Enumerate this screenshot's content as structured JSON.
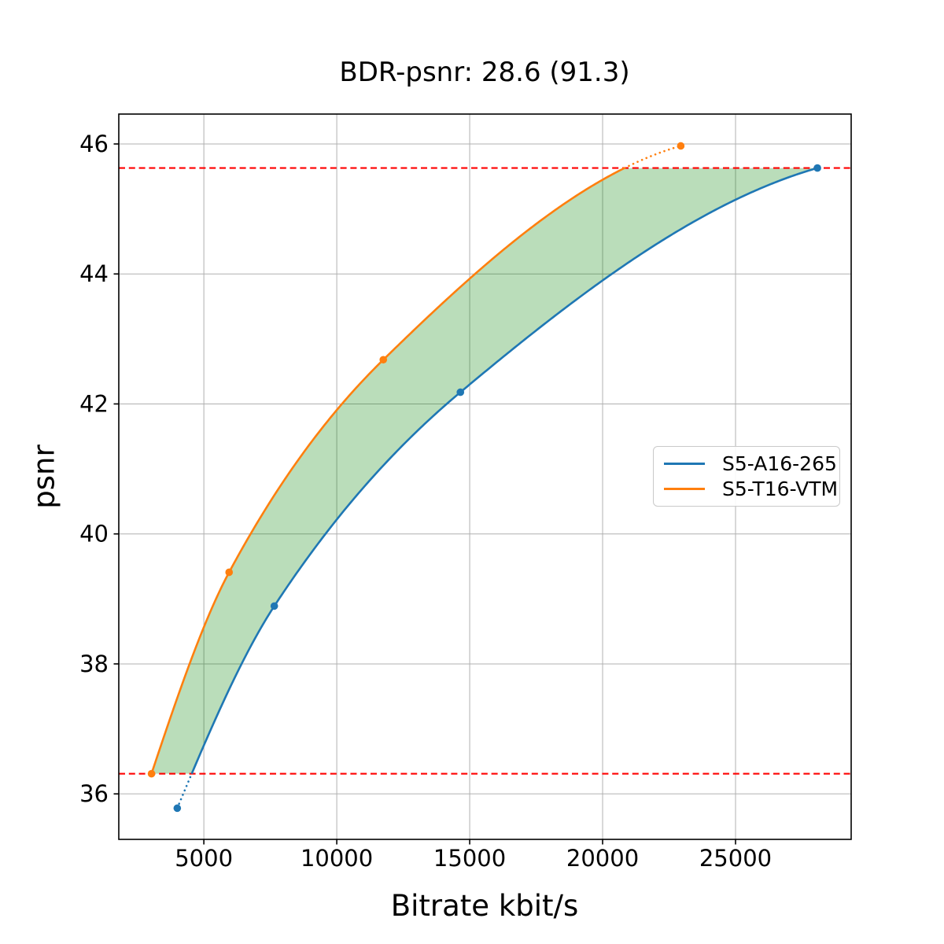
{
  "chart_data": {
    "type": "line",
    "title": "BDR-psnr: 28.6 (91.3)",
    "xlabel": "Bitrate kbit/s",
    "ylabel": "psnr",
    "xlim": [
      1800,
      29350
    ],
    "ylim": [
      35.3,
      46.46
    ],
    "xticks": [
      5000,
      10000,
      15000,
      20000,
      25000
    ],
    "yticks": [
      36,
      38,
      40,
      42,
      44,
      46
    ],
    "grid": true,
    "grid_color": "#b0b0b0",
    "background": "#ffffff",
    "series": [
      {
        "name": "S5-A16-265",
        "color": "#1f77b4",
        "marker": "circle",
        "interpolation": "pchip",
        "points": [
          [
            4000,
            35.78
          ],
          [
            7650,
            38.89
          ],
          [
            14650,
            42.18
          ],
          [
            28080,
            45.63
          ]
        ]
      },
      {
        "name": "S5-T16-VTM",
        "color": "#ff7f0e",
        "marker": "circle",
        "interpolation": "pchip",
        "points": [
          [
            3030,
            36.31
          ],
          [
            5950,
            39.41
          ],
          [
            11750,
            42.68
          ],
          [
            22940,
            45.97
          ]
        ]
      }
    ],
    "hlines": {
      "color": "#ff0000",
      "style": "dashed",
      "values": [
        45.63,
        36.31
      ]
    },
    "shaded_region": {
      "color": "rgba(0, 128, 0, 0.27)",
      "between": [
        "S5-T16-VTM",
        "S5-A16-265"
      ],
      "psnr_range": [
        36.31,
        45.63
      ]
    },
    "legend_position": "right-center"
  }
}
